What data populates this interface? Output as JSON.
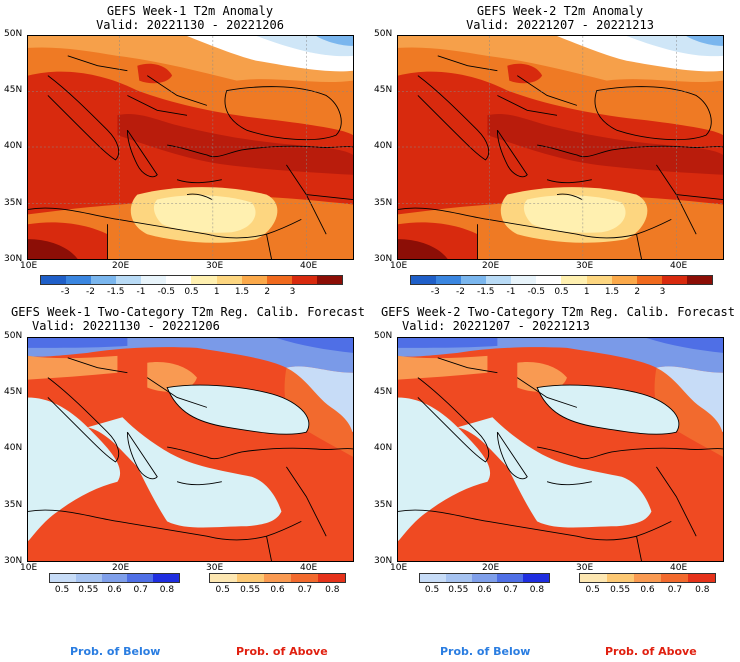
{
  "panels": [
    {
      "title": "GEFS Week-1 T2m Anomaly",
      "valid": "Valid: 20221130 - 20221206"
    },
    {
      "title": "GEFS Week-2 T2m Anomaly",
      "valid": "Valid: 20221207 - 20221213"
    },
    {
      "title": "GEFS Week-1 Two-Category T2m Reg. Calib. Forecast",
      "valid": "Valid: 20221130 - 20221206"
    },
    {
      "title": "GEFS Week-2 Two-Category T2m Reg. Calib. Forecast",
      "valid": "Valid: 20221207 - 20221213"
    }
  ],
  "axes": {
    "lat_labels": [
      "50N",
      "45N",
      "40N",
      "35N",
      "30N"
    ],
    "lon_labels": [
      "10E",
      "20E",
      "30E",
      "40E"
    ]
  },
  "anomaly_scale": {
    "labels": [
      "-3",
      "-2",
      "-1.5",
      "-1",
      "-0.5",
      "0.5",
      "1",
      "1.5",
      "2",
      "3"
    ],
    "colors": [
      "#1f5fc8",
      "#3a86e0",
      "#7ab6ee",
      "#b9dbf6",
      "#e8f4fb",
      "#ffffff",
      "#fff0b0",
      "#fdd680",
      "#fba94a",
      "#f06a1e",
      "#d82a0e",
      "#8c0e06"
    ]
  },
  "prob_below": {
    "labels": [
      "0.5",
      "0.55",
      "0.6",
      "0.7",
      "0.8"
    ],
    "colors": [
      "#c7dcf7",
      "#a6c3f1",
      "#7f9fea",
      "#4f6fe6",
      "#1f2ee0"
    ],
    "legend": "Prob. of Below",
    "legend_color": "#2a7de1"
  },
  "prob_above": {
    "labels": [
      "0.5",
      "0.55",
      "0.6",
      "0.7",
      "0.8"
    ],
    "colors": [
      "#fde7b2",
      "#fcc873",
      "#f99a52",
      "#f26a2e",
      "#e5321a"
    ],
    "legend": "Prob. of Above",
    "legend_color": "#e02010"
  },
  "map_colors": {
    "sea_prob": "#d8f1f6",
    "land_above": "#ef4a22",
    "land_above_mid": "#f56e32",
    "land_below": "#7a9ae8"
  }
}
